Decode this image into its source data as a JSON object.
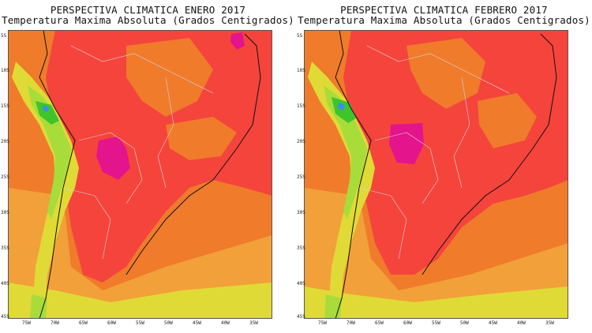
{
  "panels": [
    {
      "title": "PERSPECTIVA CLIMATICA ENERO 2017",
      "subtitle": "Temperatura Maxima Absoluta (Grados Centigrados)",
      "lat_labels": [
        "5S",
        "10S",
        "15S",
        "20S",
        "25S",
        "30S",
        "35S",
        "40S",
        "45S"
      ],
      "lon_labels": [
        "75W",
        "70W",
        "65W",
        "60W",
        "55W",
        "50W",
        "45W",
        "40W",
        "35W"
      ]
    },
    {
      "title": "PERSPECTIVA CLIMATICA FEBRERO 2017",
      "subtitle": "Temperatura Maxima Absoluta (Grados Centigrados)",
      "lat_labels": [
        "5S",
        "10S",
        "15S",
        "20S",
        "25S",
        "30S",
        "35S",
        "40S",
        "45S"
      ],
      "lon_labels": [
        "75W",
        "70W",
        "65W",
        "60W",
        "55W",
        "50W",
        "45W",
        "40W",
        "35W"
      ]
    }
  ],
  "colors": {
    "hot_red": "#f4443c",
    "orange": "#ef7b2b",
    "light_orange": "#f2a03a",
    "yellow": "#e0da36",
    "light_green": "#a8dc3a",
    "green": "#3fc42c",
    "magenta": "#e4148c",
    "blue": "#3a8fe8"
  }
}
